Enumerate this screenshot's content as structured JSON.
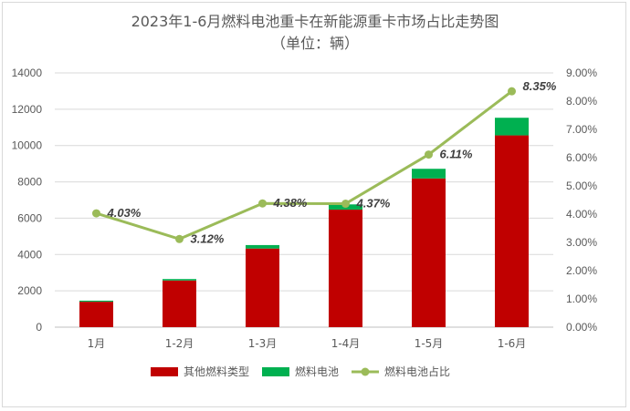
{
  "chart_data": {
    "type": "bar",
    "title": "2023年1-6月燃料电池重卡在新能源重卡市场占比走势图",
    "subtitle": "（单位：辆）",
    "categories": [
      "1月",
      "1-2月",
      "1-3月",
      "1-4月",
      "1-5月",
      "1-6月"
    ],
    "stacked": true,
    "series": [
      {
        "name": "其他燃料类型",
        "kind": "bar",
        "axis": "left",
        "color": "#c00000",
        "values": [
          1400,
          2570,
          4330,
          6470,
          8190,
          10560
        ]
      },
      {
        "name": "燃料电池",
        "kind": "bar",
        "axis": "left",
        "color": "#00b050",
        "values": [
          60,
          80,
          190,
          290,
          530,
          970
        ]
      },
      {
        "name": "燃料电池占比",
        "kind": "line",
        "axis": "right",
        "color": "#9bbb59",
        "values": [
          4.03,
          3.12,
          4.38,
          4.37,
          6.11,
          8.35
        ],
        "labels": [
          "4.03%",
          "3.12%",
          "4.38%",
          "4.37%",
          "6.11%",
          "8.35%"
        ]
      }
    ],
    "y_left": {
      "min": 0,
      "max": 14000,
      "ticks": [
        "0",
        "2000",
        "4000",
        "6000",
        "8000",
        "10000",
        "12000",
        "14000"
      ]
    },
    "y_right": {
      "min": 0,
      "max": 9,
      "ticks": [
        "0.00%",
        "1.00%",
        "2.00%",
        "3.00%",
        "4.00%",
        "5.00%",
        "6.00%",
        "7.00%",
        "8.00%",
        "9.00%"
      ]
    },
    "grid": true,
    "legend_position": "bottom"
  }
}
